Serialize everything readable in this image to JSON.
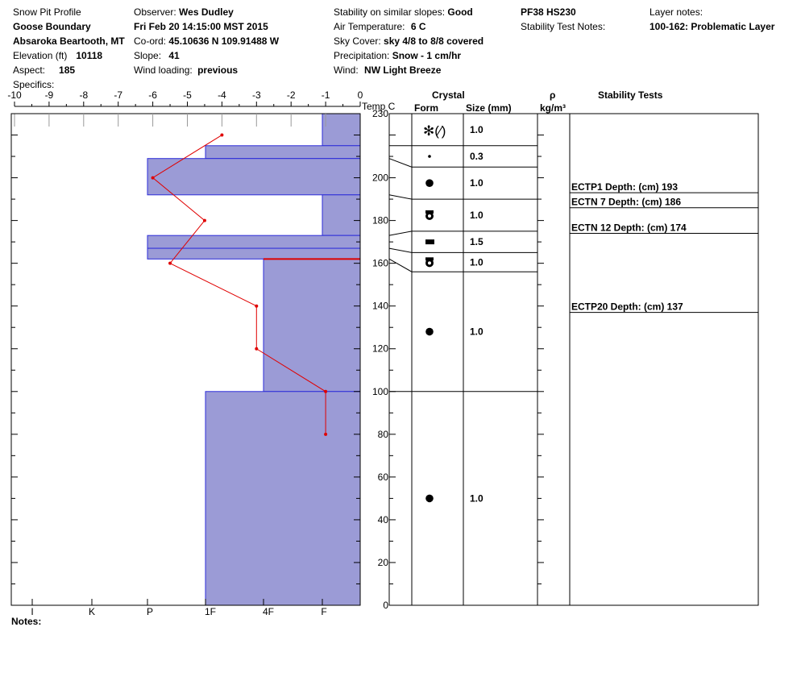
{
  "header": {
    "title": "Snow Pit Profile",
    "location": "Goose Boundary",
    "region": "Absaroka Beartooth, MT",
    "elevation_label": "Elevation (ft)",
    "elevation": "10118",
    "aspect_label": "Aspect:",
    "aspect": "185",
    "specifics_label": "Specifics:",
    "observer_label": "Observer:",
    "observer": "Wes Dudley",
    "datetime": "Fri Feb 20 14:15:00 MST 2015",
    "coord_label": "Co-ord:",
    "coord": "45.10636 N 109.91488 W",
    "slope_label": "Slope:",
    "slope": "41",
    "wind_loading_label": "Wind loading:",
    "wind_loading": "previous",
    "stability_label": "Stability on similar slopes:",
    "stability": "Good",
    "air_temp_label": "Air Temperature:",
    "air_temp": "6 C",
    "sky_label": "Sky Cover:",
    "sky": "sky 4/8 to 8/8 covered",
    "precip_label": "Precipitation:",
    "precip": "Snow - 1 cm/hr",
    "wind_label": "Wind:",
    "wind": "NW Light Breeze",
    "pf": "PF38 HS230",
    "stability_notes_label": "Stability Test Notes:",
    "layer_notes_label": "Layer notes:",
    "layer_notes": "100-162: Problematic Layer"
  },
  "columns": {
    "temp": "Temp C",
    "crystal": "Crystal",
    "form": "Form",
    "size": "Size (mm)",
    "rho": "ρ",
    "rho_unit": "kg/m³",
    "stability_tests": "Stability Tests"
  },
  "notes_label": "Notes:",
  "chart_data": {
    "type": "snow-profile",
    "temp_axis": {
      "range": [
        -10,
        0
      ],
      "ticks": [
        "-10",
        "-9",
        "-8",
        "-7",
        "-6",
        "-5",
        "-4",
        "-3",
        "-2",
        "-1",
        "0"
      ]
    },
    "height_axis": {
      "range": [
        0,
        230
      ],
      "ticks": [
        0,
        20,
        40,
        60,
        80,
        100,
        120,
        140,
        160,
        180,
        200,
        230
      ]
    },
    "hardness_axis": {
      "labels": [
        "I",
        "K",
        "P",
        "1F",
        "4F",
        "F"
      ]
    },
    "hardness_layers": [
      {
        "top": 230,
        "bottom": 215,
        "hardness": "F"
      },
      {
        "top": 215,
        "bottom": 209,
        "hardness": "1F"
      },
      {
        "top": 209,
        "bottom": 192,
        "hardness": "P"
      },
      {
        "top": 192,
        "bottom": 173,
        "hardness": "F"
      },
      {
        "top": 173,
        "bottom": 167,
        "hardness": "P"
      },
      {
        "top": 167,
        "bottom": 162,
        "hardness": "P"
      },
      {
        "top": 162,
        "bottom": 100,
        "hardness": "4F"
      },
      {
        "top": 100,
        "bottom": 0,
        "hardness": "1F"
      }
    ],
    "problematic_layer_top": 162,
    "temperature_profile": [
      {
        "height": 220,
        "temp": -4.0
      },
      {
        "height": 200,
        "temp": -6.0
      },
      {
        "height": 180,
        "temp": -4.5
      },
      {
        "height": 160,
        "temp": -5.5
      },
      {
        "height": 140,
        "temp": -3.0
      },
      {
        "height": 120,
        "temp": -3.0
      },
      {
        "height": 100,
        "temp": -1.0
      },
      {
        "height": 80,
        "temp": -1.0
      }
    ],
    "crystal_layers": [
      {
        "top": 230,
        "bottom": 215,
        "form": "new-snow",
        "size": "1.0"
      },
      {
        "top": 215,
        "bottom": 205,
        "form": "small-dot",
        "size": "0.3"
      },
      {
        "top": 205,
        "bottom": 190,
        "form": "rounded",
        "size": "1.0"
      },
      {
        "top": 190,
        "bottom": 175,
        "form": "depth-hoar",
        "size": "1.0"
      },
      {
        "top": 175,
        "bottom": 165,
        "form": "surface-hoar",
        "size": "1.5"
      },
      {
        "top": 165,
        "bottom": 156,
        "form": "depth-hoar",
        "size": "1.0"
      },
      {
        "top": 156,
        "bottom": 100,
        "form": "rounded",
        "size": "1.0"
      },
      {
        "top": 100,
        "bottom": 0,
        "form": "rounded",
        "size": "1.0"
      }
    ],
    "stability_tests": [
      {
        "label": "ECTP1   Depth: (cm) 193",
        "depth": 193
      },
      {
        "label": "ECTN 7   Depth: (cm) 186",
        "depth": 186
      },
      {
        "label": "ECTN 12   Depth: (cm) 174",
        "depth": 174
      },
      {
        "label": "ECTP20   Depth: (cm) 137",
        "depth": 137
      }
    ]
  }
}
